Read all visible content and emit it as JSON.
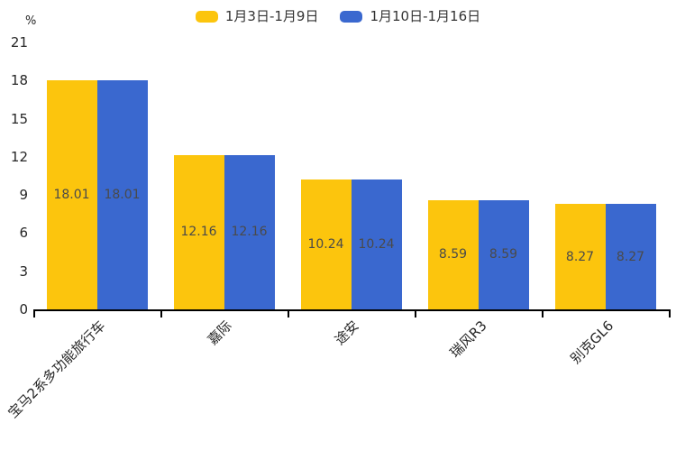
{
  "chart_data": {
    "type": "bar",
    "title": "",
    "categories": [
      "宝马2系多功能旅行车",
      "嘉际",
      "途安",
      "瑞风R3",
      "别克GL6"
    ],
    "series": [
      {
        "name": "1月3日-1月9日",
        "color": "#FCC50D",
        "values": [
          18.01,
          12.16,
          10.24,
          8.59,
          8.27
        ]
      },
      {
        "name": "1月10日-1月16日",
        "color": "#3A68CF",
        "values": [
          18.01,
          12.16,
          10.24,
          8.59,
          8.27
        ]
      }
    ],
    "ylabel": "%",
    "ylim": [
      0,
      21
    ],
    "yticks": [
      0,
      3,
      6,
      9,
      12,
      15,
      18,
      21
    ],
    "xlabel": "",
    "grid": false,
    "legend_position": "top-center",
    "value_labels": "inside-center",
    "value_label_color": "#4a4a4a",
    "axis_color": "#000000",
    "tick_label_color": "#262626",
    "x_label_rotation_deg": 45
  }
}
